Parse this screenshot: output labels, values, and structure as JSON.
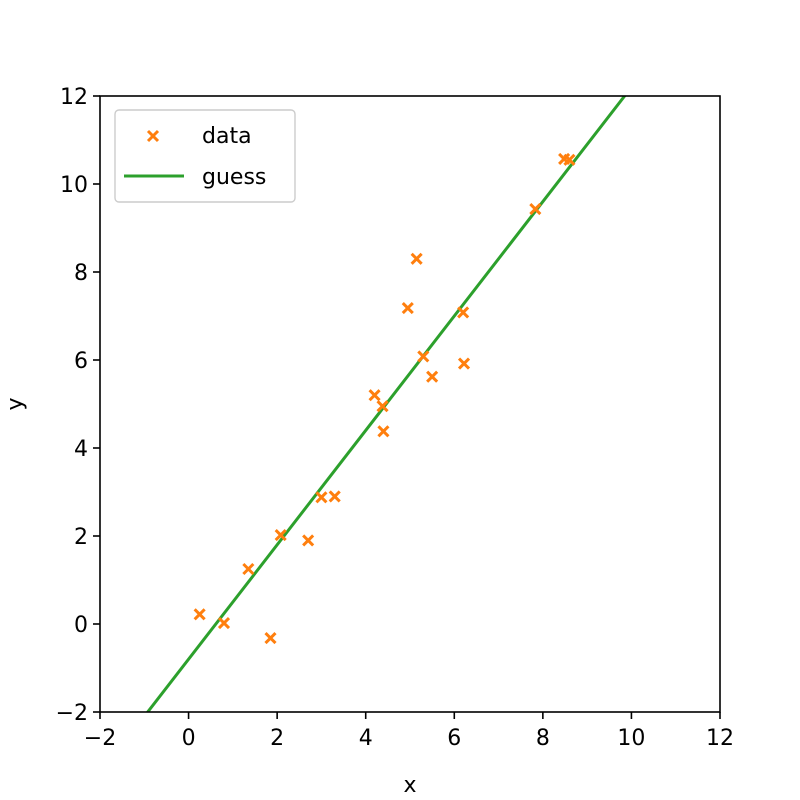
{
  "chart_data": {
    "type": "scatter",
    "xlabel": "x",
    "ylabel": "y",
    "xlim": [
      -2,
      12
    ],
    "ylim": [
      -2,
      12
    ],
    "xticks": [
      -2,
      0,
      2,
      4,
      6,
      8,
      10,
      12
    ],
    "yticks": [
      -2,
      0,
      2,
      4,
      6,
      8,
      10,
      12
    ],
    "xtick_labels": [
      "−2",
      "0",
      "2",
      "4",
      "6",
      "8",
      "10",
      "12"
    ],
    "ytick_labels": [
      "−2",
      "0",
      "2",
      "4",
      "6",
      "8",
      "10",
      "12"
    ],
    "grid": false,
    "legend_position": "top-left",
    "series": [
      {
        "name": "data",
        "kind": "scatter",
        "marker": "x",
        "color": "#ff7f0e",
        "points": [
          [
            0.25,
            0.22
          ],
          [
            0.8,
            0.02
          ],
          [
            1.35,
            1.25
          ],
          [
            1.85,
            -0.32
          ],
          [
            2.08,
            2.02
          ],
          [
            2.7,
            1.9
          ],
          [
            3.0,
            2.88
          ],
          [
            3.3,
            2.9
          ],
          [
            4.2,
            5.2
          ],
          [
            4.38,
            4.95
          ],
          [
            4.4,
            4.38
          ],
          [
            4.95,
            7.18
          ],
          [
            5.15,
            8.3
          ],
          [
            5.3,
            6.08
          ],
          [
            5.5,
            5.62
          ],
          [
            6.2,
            7.08
          ],
          [
            6.22,
            5.92
          ],
          [
            7.83,
            9.43
          ],
          [
            8.48,
            10.57
          ],
          [
            8.6,
            10.55
          ]
        ]
      },
      {
        "name": "guess",
        "kind": "line",
        "color": "#2ca02c",
        "slope": 1.3,
        "intercept": -0.8
      }
    ]
  }
}
